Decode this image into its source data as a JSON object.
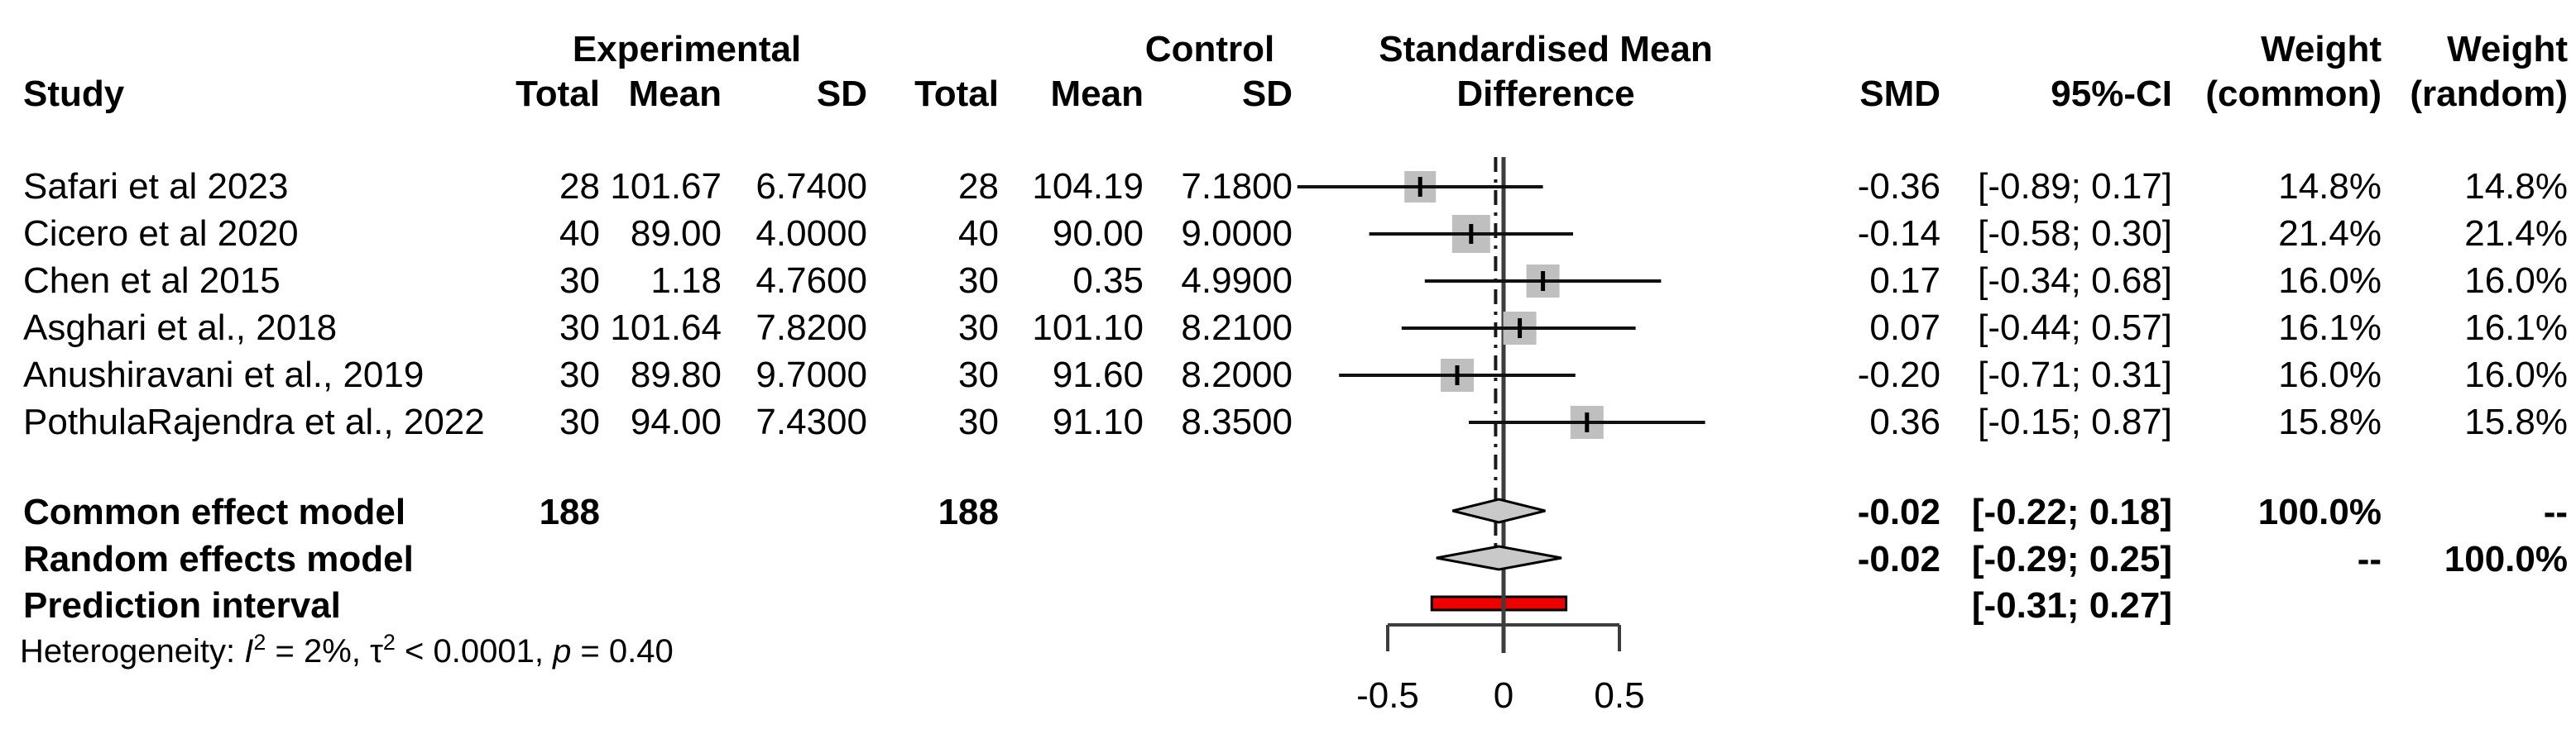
{
  "header": {
    "study": "Study",
    "group_experimental": "Experimental",
    "group_control": "Control",
    "effect_line1": "Standardised Mean",
    "effect_line2": "Difference",
    "total": "Total",
    "mean": "Mean",
    "sd": "SD",
    "smd": "SMD",
    "ci": "95%-CI",
    "weight": "Weight",
    "weight_common_sub": "(common)",
    "weight_random_sub": "(random)"
  },
  "studies": [
    {
      "name": "Safari et al 2023",
      "exp_total": "28",
      "exp_mean": "101.67",
      "exp_sd": "6.7400",
      "ctrl_total": "28",
      "ctrl_mean": "104.19",
      "ctrl_sd": "7.1800",
      "smd": "-0.36",
      "ci": "[-0.89; 0.17]",
      "w_common": "14.8%",
      "w_random": "14.8%"
    },
    {
      "name": "Cicero et al 2020",
      "exp_total": "40",
      "exp_mean": "89.00",
      "exp_sd": "4.0000",
      "ctrl_total": "40",
      "ctrl_mean": "90.00",
      "ctrl_sd": "9.0000",
      "smd": "-0.14",
      "ci": "[-0.58; 0.30]",
      "w_common": "21.4%",
      "w_random": "21.4%"
    },
    {
      "name": "Chen et al 2015",
      "exp_total": "30",
      "exp_mean": "1.18",
      "exp_sd": "4.7600",
      "ctrl_total": "30",
      "ctrl_mean": "0.35",
      "ctrl_sd": "4.9900",
      "smd": "0.17",
      "ci": "[-0.34; 0.68]",
      "w_common": "16.0%",
      "w_random": "16.0%"
    },
    {
      "name": "Asghari et al., 2018",
      "exp_total": "30",
      "exp_mean": "101.64",
      "exp_sd": "7.8200",
      "ctrl_total": "30",
      "ctrl_mean": "101.10",
      "ctrl_sd": "8.2100",
      "smd": "0.07",
      "ci": "[-0.44; 0.57]",
      "w_common": "16.1%",
      "w_random": "16.1%"
    },
    {
      "name": "Anushiravani et al., 2019",
      "exp_total": "30",
      "exp_mean": "89.80",
      "exp_sd": "9.7000",
      "ctrl_total": "30",
      "ctrl_mean": "91.60",
      "ctrl_sd": "8.2000",
      "smd": "-0.20",
      "ci": "[-0.71; 0.31]",
      "w_common": "16.0%",
      "w_random": "16.0%"
    },
    {
      "name": "PothulaRajendra et al., 2022",
      "exp_total": "30",
      "exp_mean": "94.00",
      "exp_sd": "7.4300",
      "ctrl_total": "30",
      "ctrl_mean": "91.10",
      "ctrl_sd": "8.3500",
      "smd": "0.36",
      "ci": "[-0.15; 0.87]",
      "w_common": "15.8%",
      "w_random": "15.8%"
    }
  ],
  "summary": [
    {
      "label": "Common effect model",
      "exp_total": "188",
      "ctrl_total": "188",
      "smd": "-0.02",
      "ci": "[-0.22; 0.18]",
      "w_common": "100.0%",
      "w_random": "--"
    },
    {
      "label": "Random effects model",
      "exp_total": "",
      "ctrl_total": "",
      "smd": "-0.02",
      "ci": "[-0.29; 0.25]",
      "w_common": "--",
      "w_random": "100.0%"
    },
    {
      "label": "Prediction interval",
      "exp_total": "",
      "ctrl_total": "",
      "smd": "",
      "ci": "[-0.31; 0.27]",
      "w_common": "",
      "w_random": ""
    }
  ],
  "heterogeneity": {
    "prefix": "Heterogeneity: ",
    "i": "I",
    "i_sup": "2",
    "seg1": " = 2%, ",
    "tau": "τ",
    "tau_sup": "2",
    "seg2": " < 0.0001, ",
    "p": "p",
    "seg3": " = 0.40"
  },
  "colors": {
    "text": "#000000",
    "ci_line": "#111111",
    "square_fill": "#bfbfbf",
    "marker": "#000000",
    "diamond_fill": "#c9c9c9",
    "diamond_stroke": "#000000",
    "prediction_bar_fill": "#ee0000",
    "prediction_bar_stroke": "#000000",
    "axis_line": "#3d3d3d",
    "zero_line": "#3d3d3d",
    "overall_dashed_line": "#1a1a1a"
  },
  "chart_data": {
    "type": "forest",
    "title": "",
    "effect_measure_label": "Standardised Mean Difference",
    "x_ticks": [
      {
        "v": -0.5,
        "label": "-0.5"
      },
      {
        "v": 0,
        "label": "0"
      },
      {
        "v": 0.5,
        "label": "0.5"
      }
    ],
    "axis_bracket_range": [
      -0.5,
      0.5
    ],
    "zero_line_x": 0,
    "overall_effect_dashed_x": -0.02,
    "studies": [
      {
        "name": "Safari et al 2023",
        "smd": -0.36,
        "ci": [
          -0.89,
          0.17
        ],
        "weight_common_pct": 14.8,
        "weight_random_pct": 14.8
      },
      {
        "name": "Cicero et al 2020",
        "smd": -0.14,
        "ci": [
          -0.58,
          0.3
        ],
        "weight_common_pct": 21.4,
        "weight_random_pct": 21.4
      },
      {
        "name": "Chen et al 2015",
        "smd": 0.17,
        "ci": [
          -0.34,
          0.68
        ],
        "weight_common_pct": 16.0,
        "weight_random_pct": 16.0
      },
      {
        "name": "Asghari et al., 2018",
        "smd": 0.07,
        "ci": [
          -0.44,
          0.57
        ],
        "weight_common_pct": 16.1,
        "weight_random_pct": 16.1
      },
      {
        "name": "Anushiravani et al., 2019",
        "smd": -0.2,
        "ci": [
          -0.71,
          0.31
        ],
        "weight_common_pct": 16.0,
        "weight_random_pct": 16.0
      },
      {
        "name": "PothulaRajendra et al., 2022",
        "smd": 0.36,
        "ci": [
          -0.15,
          0.87
        ],
        "weight_common_pct": 15.8,
        "weight_random_pct": 15.8
      }
    ],
    "common_effect": {
      "n_exp": 188,
      "n_ctrl": 188,
      "smd": -0.02,
      "ci": [
        -0.22,
        0.18
      ],
      "weight_common_pct": 100.0
    },
    "random_effects": {
      "smd": -0.02,
      "ci": [
        -0.29,
        0.25
      ],
      "weight_random_pct": 100.0
    },
    "prediction_interval": {
      "ci": [
        -0.31,
        0.27
      ]
    },
    "heterogeneity": {
      "I2": "2%",
      "tau2": "< 0.0001",
      "p": "0.40"
    }
  }
}
